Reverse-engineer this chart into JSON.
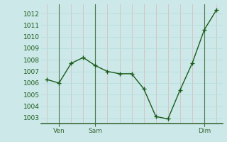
{
  "x_values": [
    0,
    1,
    2,
    3,
    4,
    5,
    6,
    7,
    8,
    9,
    10,
    11,
    12,
    13,
    14
  ],
  "y_values": [
    1006.3,
    1006.0,
    1007.7,
    1008.2,
    1007.5,
    1007.0,
    1006.8,
    1006.8,
    1005.5,
    1003.1,
    1002.9,
    1005.4,
    1007.7,
    1010.6,
    1012.3
  ],
  "xtick_positions": [
    1,
    4,
    13
  ],
  "xtick_labels": [
    "Ven",
    "Sam",
    "Dim"
  ],
  "vline_positions": [
    1,
    4,
    13
  ],
  "ytick_values": [
    1003,
    1004,
    1005,
    1006,
    1007,
    1008,
    1009,
    1010,
    1011,
    1012
  ],
  "ylim": [
    1002.5,
    1012.8
  ],
  "xlim": [
    -0.5,
    14.5
  ],
  "line_color": "#1a5c1a",
  "bg_color": "#cce8e8",
  "grid_white_color": "#b8dede",
  "grid_pink_color": "#d8b8b8",
  "vline_color": "#4a7a4a",
  "bottom_line_color": "#3a6a3a",
  "tick_label_color": "#1a5c1a",
  "label_fontsize": 6.5,
  "marker_size": 4,
  "line_width": 1.0
}
